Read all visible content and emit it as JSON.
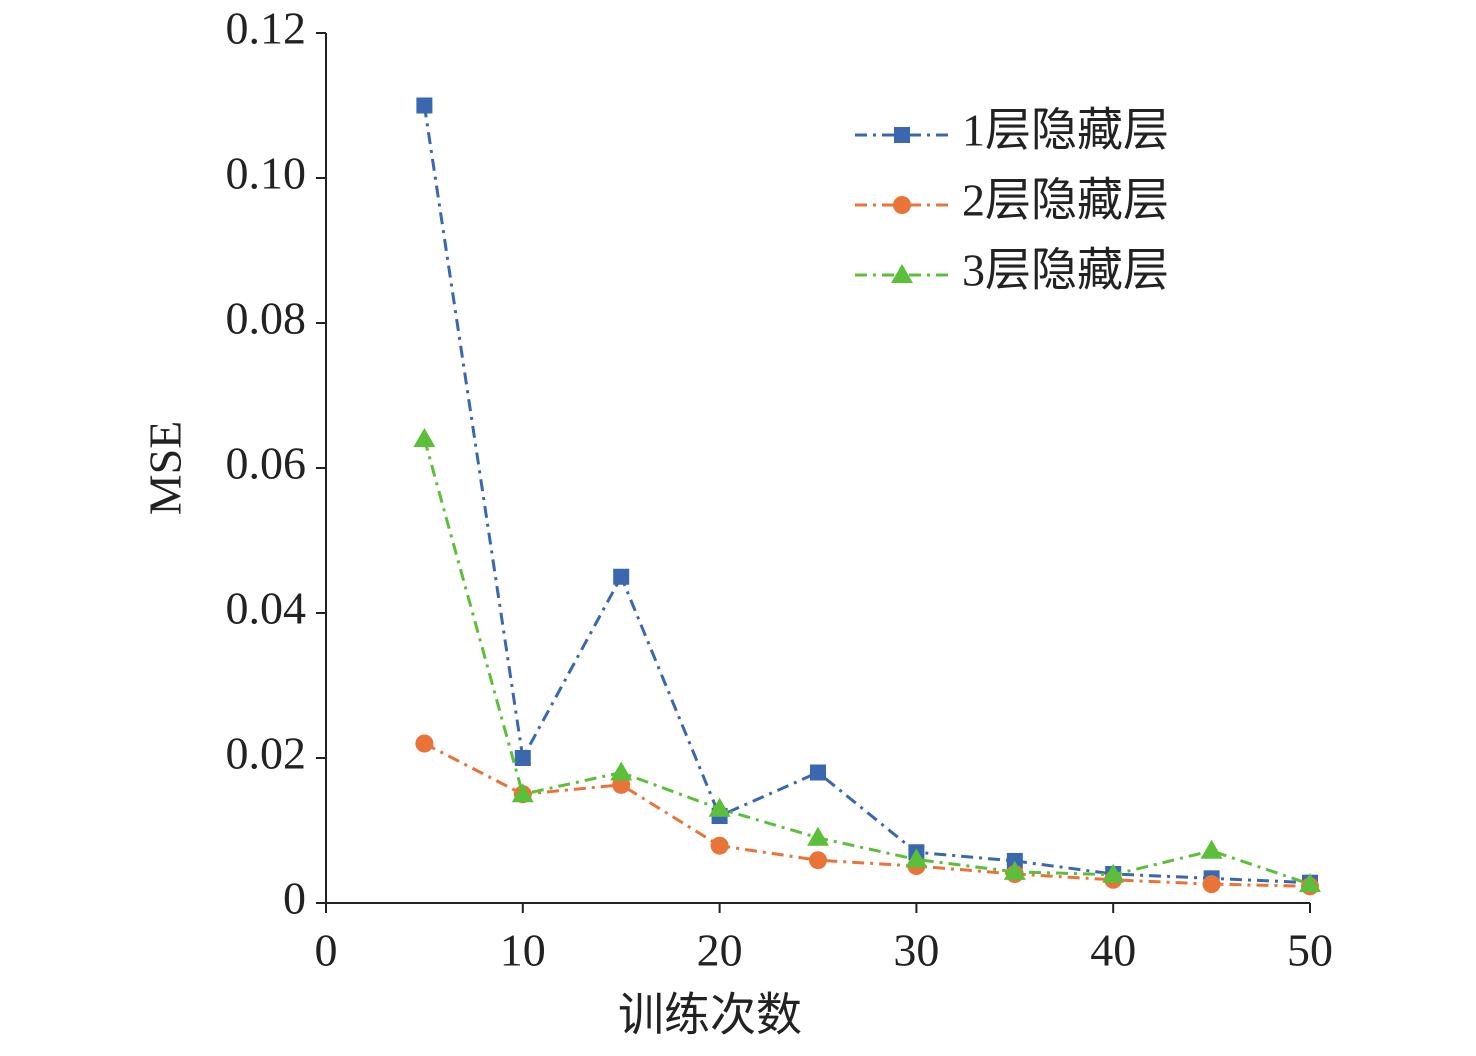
{
  "chart_data": {
    "type": "line",
    "x_label": "训练次数",
    "y_label": "MSE",
    "xlim": [
      0,
      50
    ],
    "xticks": [
      0,
      10,
      20,
      30,
      40,
      50
    ],
    "ylim": [
      0,
      0.12
    ],
    "yticks": [
      0,
      0.02,
      0.04,
      0.06,
      0.08,
      {
        "value": 0.1,
        "label": "0.10"
      },
      0.12
    ],
    "legend": "upper right",
    "series": [
      {
        "name": "1层隐藏层",
        "color": "#3a67ad",
        "marker": "square",
        "x": [
          5,
          10,
          15,
          20,
          25,
          30,
          35,
          40,
          45,
          50
        ],
        "values": [
          0.11,
          0.02,
          0.045,
          0.012,
          0.018,
          0.007,
          0.0058,
          0.004,
          0.0034,
          0.0028
        ]
      },
      {
        "name": "2层隐藏层",
        "color": "#e8743a",
        "marker": "circle",
        "x": [
          5,
          10,
          15,
          20,
          25,
          30,
          35,
          40,
          45,
          50
        ],
        "values": [
          0.022,
          0.015,
          0.0163,
          0.0079,
          0.0059,
          0.0051,
          0.004,
          0.0032,
          0.0026,
          0.0023
        ]
      },
      {
        "name": "3层隐藏层",
        "color": "#5cbf3a",
        "marker": "triangle",
        "x": [
          5,
          10,
          15,
          20,
          25,
          30,
          35,
          40,
          45,
          50
        ],
        "values": [
          0.064,
          0.015,
          0.018,
          0.013,
          0.009,
          0.006,
          0.0043,
          0.0039,
          0.0072,
          0.0026
        ]
      }
    ]
  }
}
